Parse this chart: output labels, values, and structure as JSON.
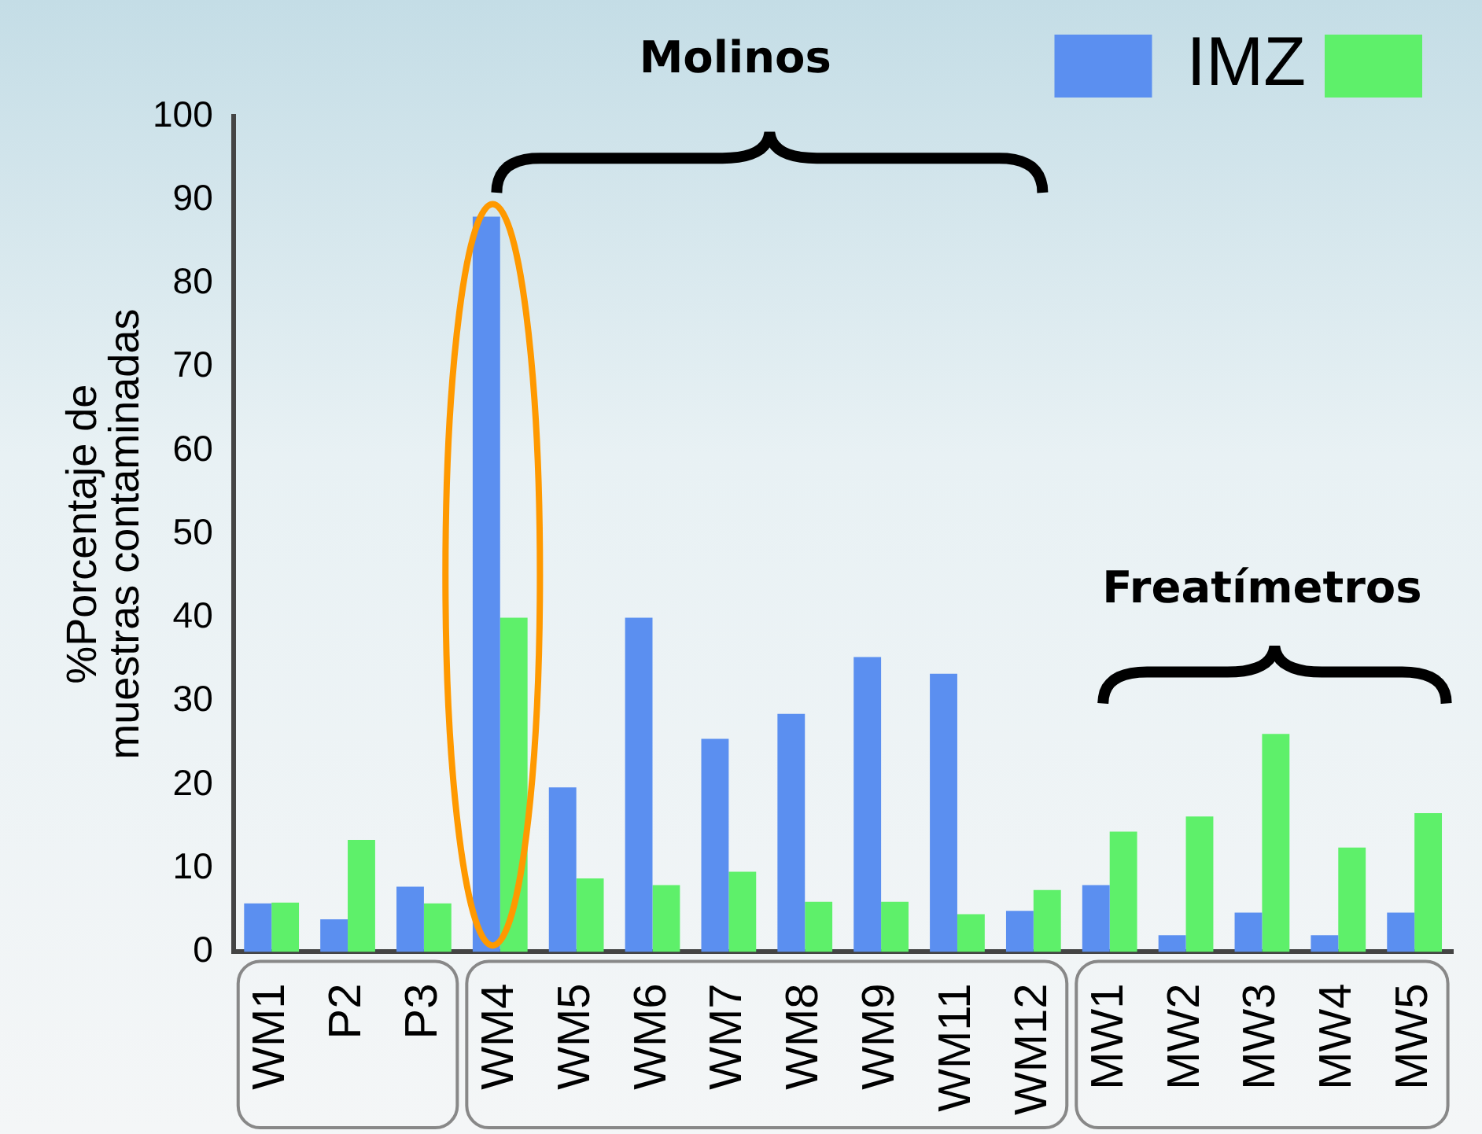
{
  "chart_data": {
    "type": "bar",
    "ylabel": "%Porcentaje de muestras contaminadas",
    "categories": [
      "WM1",
      "P2",
      "P3",
      "WM4",
      "WM5",
      "WM6",
      "WM7",
      "WM8",
      "WM9",
      "WM11",
      "WM12",
      "MW1",
      "MW2",
      "MW3",
      "MW4",
      "MW5"
    ],
    "series": [
      {
        "name": "IMZ",
        "color": "#5b8ff0",
        "values": [
          5.8,
          3.9,
          7.8,
          88,
          19.7,
          40,
          25.5,
          28.5,
          35.3,
          33.3,
          4.9,
          8,
          2,
          4.7,
          2,
          4.7
        ]
      },
      {
        "color": "#5ef06a",
        "values": [
          5.9,
          13.4,
          5.8,
          40,
          8.8,
          8,
          9.6,
          6,
          6,
          4.5,
          7.4,
          14.4,
          16.2,
          26.1,
          12.5,
          16.6
        ]
      }
    ],
    "ylim": [
      0,
      100
    ],
    "yticks": [
      0,
      10,
      20,
      30,
      40,
      50,
      60,
      70,
      80,
      90,
      100
    ],
    "grid": false,
    "legend": "top right",
    "annotations": [
      "Molinos",
      "Freatímetros"
    ]
  }
}
